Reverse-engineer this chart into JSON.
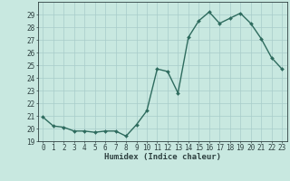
{
  "x": [
    0,
    1,
    2,
    3,
    4,
    5,
    6,
    7,
    8,
    9,
    10,
    11,
    12,
    13,
    14,
    15,
    16,
    17,
    18,
    19,
    20,
    21,
    22,
    23
  ],
  "y": [
    20.9,
    20.2,
    20.1,
    19.8,
    19.8,
    19.7,
    19.8,
    19.8,
    19.4,
    20.3,
    21.4,
    24.7,
    24.5,
    22.8,
    27.2,
    28.5,
    29.2,
    28.3,
    28.7,
    29.1,
    28.3,
    27.1,
    25.6,
    24.7
  ],
  "line_color": "#2E6B5E",
  "marker": "D",
  "markersize": 2.0,
  "linewidth": 1.0,
  "bg_color": "#C8E8E0",
  "grid_color": "#A8CCCA",
  "xlabel": "Humidex (Indice chaleur)",
  "ylim": [
    19,
    30
  ],
  "xlim": [
    -0.5,
    23.5
  ],
  "yticks": [
    19,
    20,
    21,
    22,
    23,
    24,
    25,
    26,
    27,
    28,
    29
  ],
  "xticks": [
    0,
    1,
    2,
    3,
    4,
    5,
    6,
    7,
    8,
    9,
    10,
    11,
    12,
    13,
    14,
    15,
    16,
    17,
    18,
    19,
    20,
    21,
    22,
    23
  ],
  "tick_fontsize": 5.5,
  "label_fontsize": 6.5,
  "tick_color": "#2E4040",
  "axis_color": "#2E4040"
}
